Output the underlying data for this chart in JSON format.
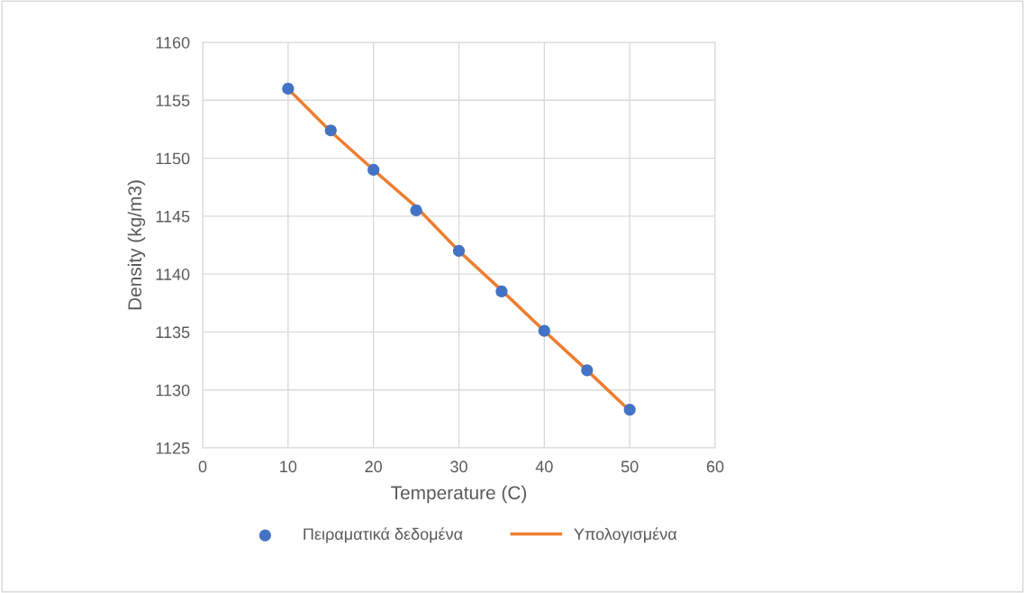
{
  "chart_data": {
    "type": "scatter",
    "xlabel": "Temperature (C)",
    "ylabel": "Density (kg/m3)",
    "x": [
      10,
      15,
      20,
      25,
      30,
      35,
      40,
      45,
      50
    ],
    "series": [
      {
        "name": "Πειραματικά δεδομένα",
        "marker": "circle",
        "color": "#4472c4",
        "values": [
          1156,
          1152.4,
          1149,
          1145.5,
          1142,
          1138.5,
          1135.1,
          1131.7,
          1128.3
        ]
      },
      {
        "name": "Υπολογισμένα",
        "type": "line",
        "marker": "none",
        "color": "#ed7d31",
        "values": [
          1156,
          1152.3,
          1149,
          1145.8,
          1142,
          1138.6,
          1135.1,
          1131.7,
          1128.2
        ]
      }
    ],
    "xlim": [
      0,
      60
    ],
    "xticks": [
      0,
      10,
      20,
      30,
      40,
      50,
      60
    ],
    "ylim": [
      1125,
      1160
    ],
    "yticks": [
      1125,
      1130,
      1135,
      1140,
      1145,
      1150,
      1155,
      1160
    ],
    "grid": true,
    "legend": "bottom",
    "line_style": "solid"
  }
}
